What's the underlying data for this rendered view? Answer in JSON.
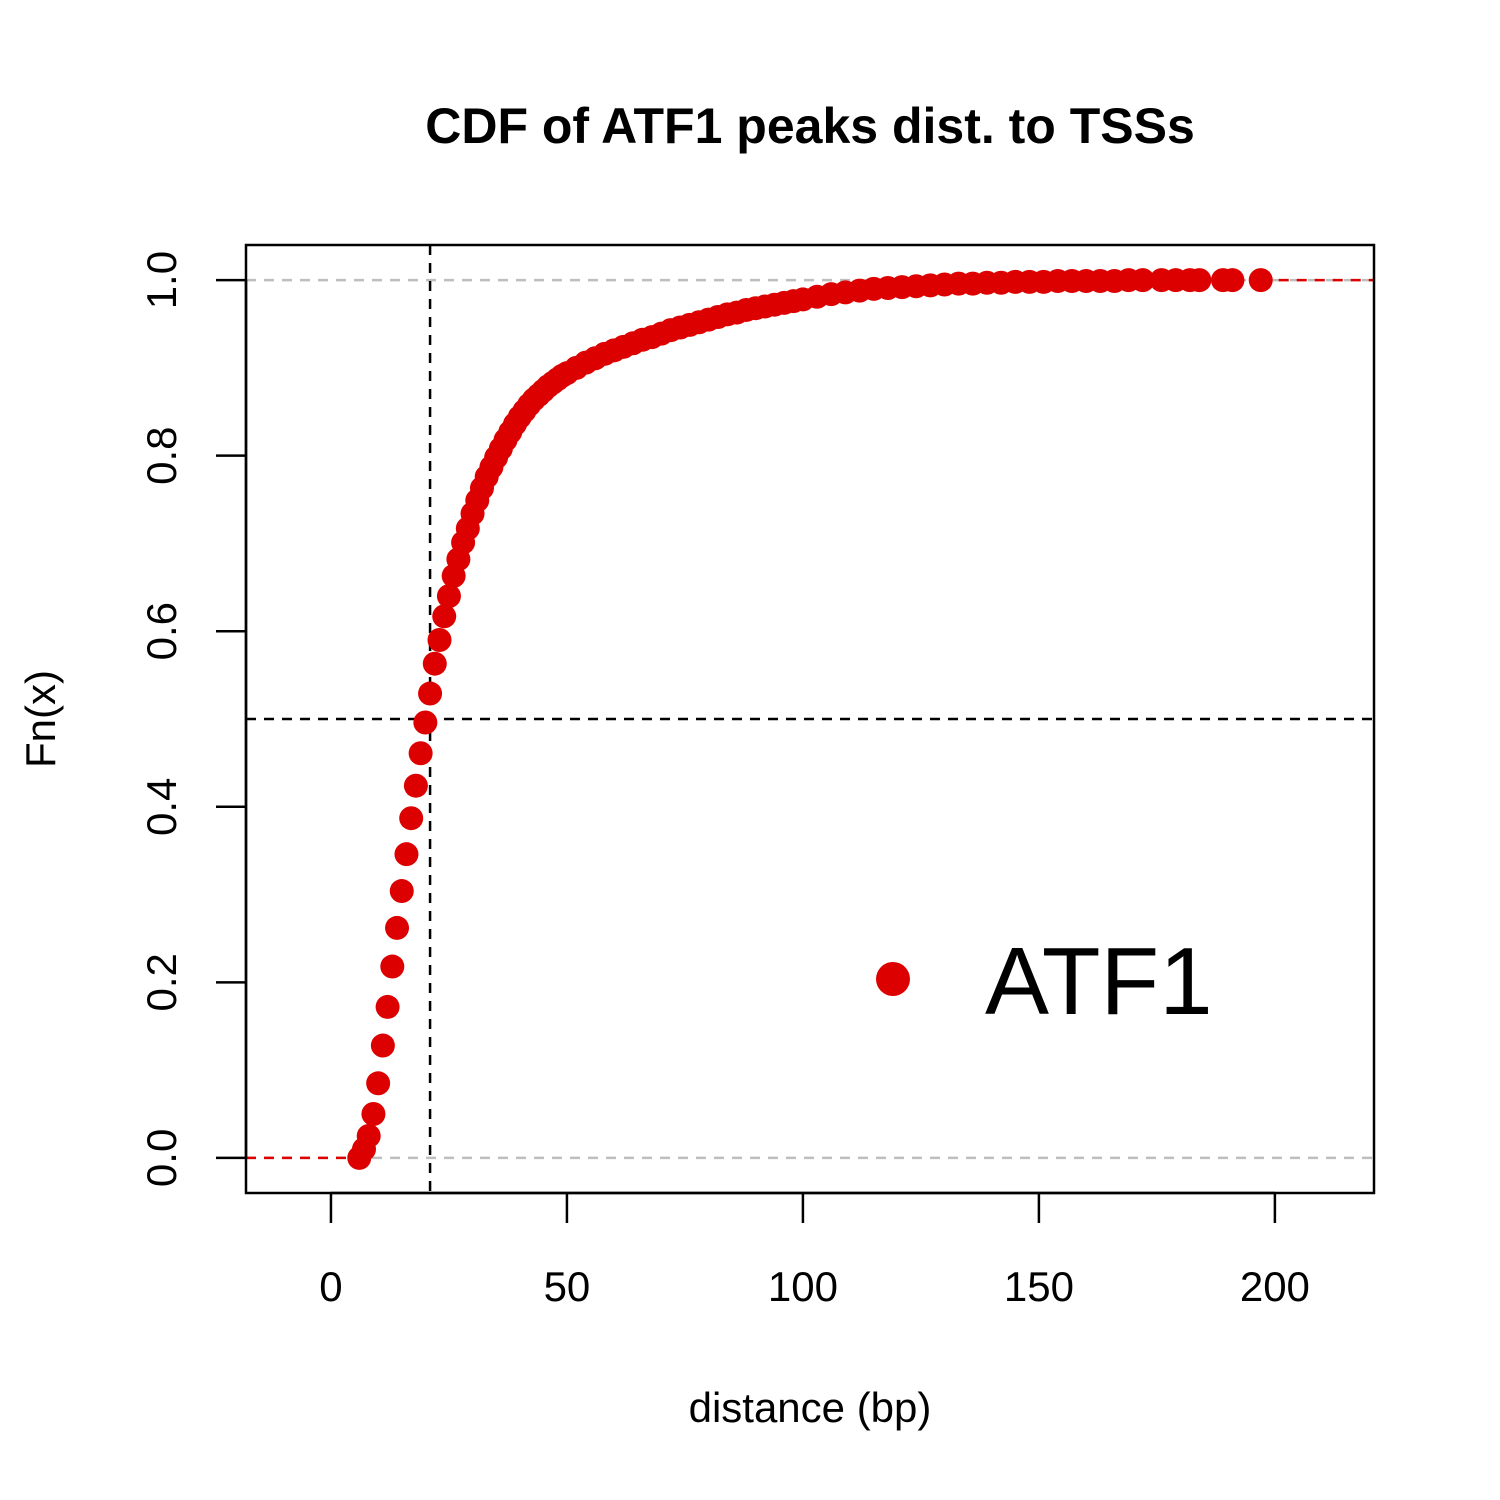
{
  "chart_data": {
    "type": "scatter",
    "title": "CDF of ATF1 peaks dist. to TSSs",
    "xlabel": "distance (bp)",
    "ylabel": "Fn(x)",
    "xlim": [
      -18,
      221
    ],
    "ylim": [
      -0.04,
      1.04
    ],
    "x_ticks": [
      0,
      50,
      100,
      150,
      200
    ],
    "x_tick_labels": [
      "0",
      "50",
      "100",
      "150",
      "200"
    ],
    "y_ticks": [
      0,
      0.2,
      0.4,
      0.6,
      0.8,
      1
    ],
    "y_tick_labels": [
      "0.0",
      "0.2",
      "0.4",
      "0.6",
      "0.8",
      "1.0"
    ],
    "grid": false,
    "reference_lines": {
      "gray_dashed_y": [
        0,
        1
      ],
      "black_dashed_y": [
        0.5
      ],
      "black_dashed_x": [
        21
      ]
    },
    "legend": {
      "position": "bottom-right"
    },
    "colors": {
      "series": "#dd0000",
      "reference_gray": "#bebebe",
      "reference_black": "#000000"
    },
    "series": [
      {
        "name": "ATF1",
        "x": [
          6,
          7,
          8,
          9,
          10,
          11,
          12,
          13,
          14,
          15,
          16,
          17,
          18,
          19,
          20,
          21,
          22,
          23,
          24,
          25,
          26,
          27,
          28,
          29,
          30,
          31,
          32,
          33,
          34,
          35,
          36,
          37,
          38,
          39,
          40,
          41,
          42,
          43,
          44,
          45,
          46,
          47,
          48,
          49,
          50,
          52,
          54,
          56,
          58,
          60,
          62,
          64,
          66,
          68,
          70,
          72,
          74,
          76,
          78,
          80,
          82,
          84,
          86,
          88,
          90,
          92,
          94,
          96,
          98,
          100,
          103,
          106,
          109,
          112,
          115,
          118,
          121,
          124,
          127,
          130,
          133,
          136,
          139,
          142,
          145,
          148,
          151,
          154,
          157,
          160,
          163,
          166,
          169,
          172,
          176,
          179,
          182,
          184,
          189,
          191,
          197
        ],
        "y": [
          0.0,
          0.01,
          0.025,
          0.05,
          0.085,
          0.128,
          0.172,
          0.218,
          0.262,
          0.304,
          0.346,
          0.387,
          0.424,
          0.461,
          0.496,
          0.529,
          0.563,
          0.59,
          0.617,
          0.64,
          0.663,
          0.682,
          0.701,
          0.717,
          0.734,
          0.749,
          0.763,
          0.776,
          0.787,
          0.798,
          0.808,
          0.818,
          0.827,
          0.836,
          0.844,
          0.851,
          0.858,
          0.864,
          0.869,
          0.874,
          0.879,
          0.883,
          0.887,
          0.891,
          0.894,
          0.9,
          0.906,
          0.911,
          0.916,
          0.92,
          0.924,
          0.928,
          0.932,
          0.935,
          0.939,
          0.943,
          0.946,
          0.949,
          0.952,
          0.955,
          0.958,
          0.961,
          0.963,
          0.966,
          0.968,
          0.97,
          0.972,
          0.974,
          0.976,
          0.978,
          0.981,
          0.984,
          0.986,
          0.988,
          0.99,
          0.991,
          0.992,
          0.993,
          0.994,
          0.995,
          0.996,
          0.996,
          0.997,
          0.997,
          0.998,
          0.998,
          0.998,
          0.999,
          0.999,
          0.999,
          0.999,
          0.999,
          1.0,
          1.0,
          1.0,
          1.0,
          1.0,
          1.0,
          1.0,
          1.0,
          1.0
        ]
      }
    ]
  }
}
